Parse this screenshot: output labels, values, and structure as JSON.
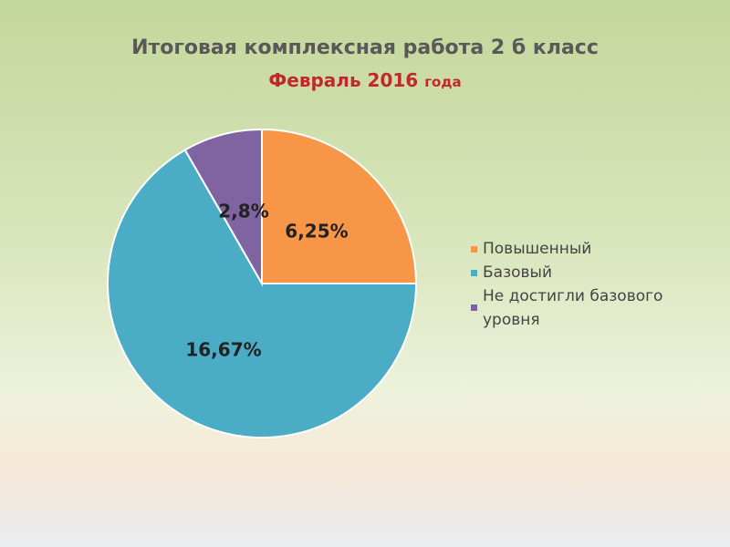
{
  "chart_data": {
    "type": "pie",
    "title": "Итоговая комплексная работа 2 б класс",
    "subtitle_main": "Февраль 2016",
    "subtitle_suffix": "года",
    "categories": [
      "Повышенный",
      "Базовый",
      "Не достигли базового уровня"
    ],
    "values": [
      25,
      66.7,
      8.3
    ],
    "data_labels": [
      "6,25%",
      "16,67%",
      "2,8%"
    ],
    "colors": [
      "#f79646",
      "#4bacc6",
      "#8064a2"
    ],
    "legend_position": "right"
  }
}
